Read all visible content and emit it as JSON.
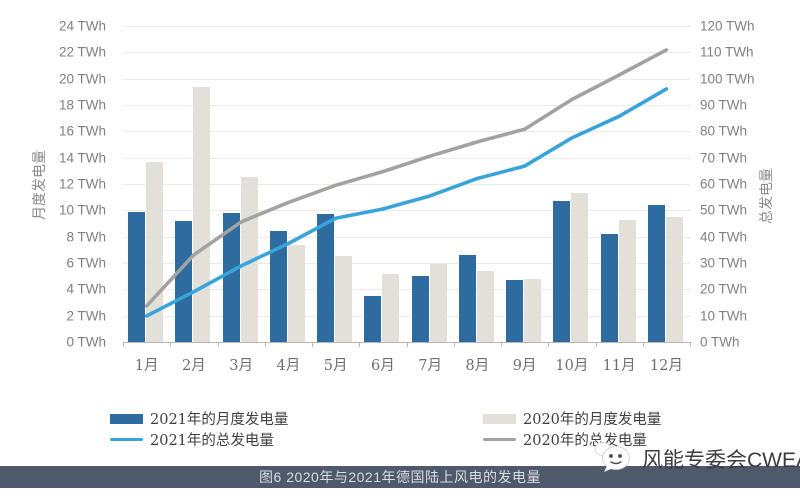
{
  "chart_data": {
    "type": "combo_bar_line",
    "categories": [
      "1月",
      "2月",
      "3月",
      "4月",
      "5月",
      "6月",
      "7月",
      "8月",
      "9月",
      "10月",
      "11月",
      "12月"
    ],
    "series": [
      {
        "name": "2021年的月度发电量",
        "type": "bar",
        "axis": "left",
        "color": "#2e6b9e",
        "values": [
          9.9,
          9.2,
          9.8,
          8.4,
          9.7,
          3.5,
          5.0,
          6.6,
          4.7,
          10.7,
          8.2,
          10.4
        ]
      },
      {
        "name": "2020年的月度发电量",
        "type": "bar",
        "axis": "left",
        "color": "#e3e0d9",
        "values": [
          13.7,
          19.4,
          12.5,
          7.4,
          6.5,
          5.2,
          5.9,
          5.4,
          4.8,
          11.3,
          9.3,
          9.5
        ]
      },
      {
        "name": "2021年的总发电量",
        "type": "line",
        "axis": "right",
        "color": "#39a3db",
        "values": [
          9.9,
          19.1,
          28.9,
          37.4,
          47.0,
          50.5,
          55.5,
          62.1,
          66.8,
          77.5,
          85.7,
          96.1
        ]
      },
      {
        "name": "2020年的总发电量",
        "type": "line",
        "axis": "right",
        "color": "#a3a2a0",
        "values": [
          13.7,
          33.1,
          45.6,
          53.0,
          59.5,
          64.7,
          70.6,
          76.0,
          80.8,
          92.1,
          101.4,
          110.9
        ]
      }
    ],
    "left_axis": {
      "title": "月度发电量",
      "min": 0,
      "max": 24,
      "step": 2,
      "unit": "TWh",
      "tick_labels": [
        "0 TWh",
        "2 TWh",
        "4 TWh",
        "6 TWh",
        "8 TWh",
        "10 TWh",
        "12 TWh",
        "14 TWh",
        "16 TWh",
        "18 TWh",
        "20 TWh",
        "22 TWh",
        "24 TWh"
      ]
    },
    "right_axis": {
      "title": "总发电量",
      "min": 0,
      "max": 120,
      "step": 10,
      "unit": "TWh",
      "tick_labels": [
        "0 TWh",
        "10 TWh",
        "20 TWh",
        "30 TWh",
        "40 TWh",
        "50 TWh",
        "60 TWh",
        "70 TWh",
        "80 TWh",
        "90 TWh",
        "100 TWh",
        "110 TWh",
        "120 TWh"
      ]
    },
    "grid": true,
    "legend_position": "bottom"
  },
  "caption": {
    "text": "图6 2020年与2021年德国陆上风电的发电量"
  },
  "watermark": {
    "text": "风能专委会CWEA",
    "icon": "wechat-bubbles-icon"
  },
  "colors": {
    "bar_2021": "#2e6b9e",
    "bar_2020": "#e3e0d9",
    "line_2021": "#39a3db",
    "line_2020": "#a3a2a0",
    "gridline": "#edebe7",
    "axis_text": "#808080",
    "caption_bar_bg": "#4e5a6b",
    "caption_text": "#d9dce2",
    "watermark_text": "#3b3c3e"
  }
}
